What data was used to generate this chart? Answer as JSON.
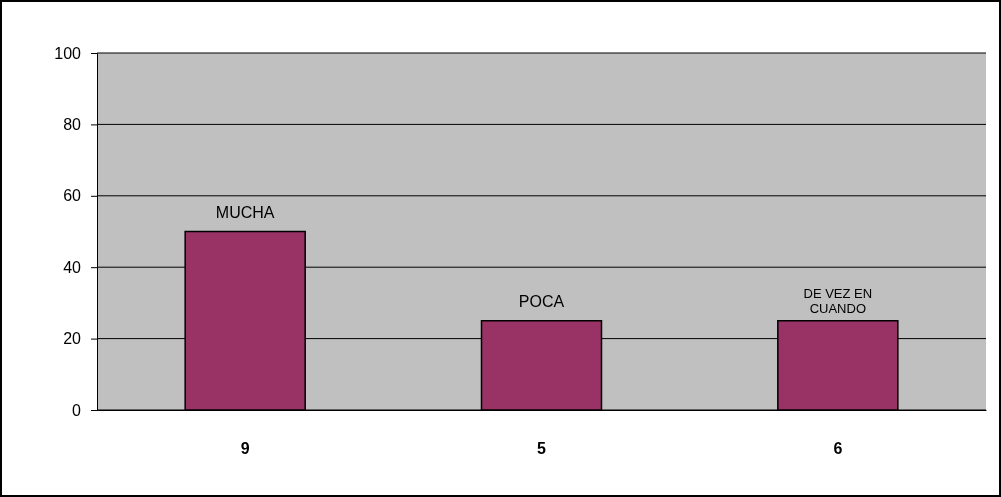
{
  "chart_data": {
    "type": "bar",
    "categories": [
      "9",
      "5",
      "6"
    ],
    "values": [
      50,
      25,
      25
    ],
    "color": "#993366",
    "ylim": [
      0,
      100
    ],
    "yticks": [
      0,
      20,
      40,
      60,
      80,
      100
    ],
    "grid": "y",
    "annotations": [
      {
        "text": "MUCHA",
        "x": "9",
        "y": 50
      },
      {
        "text": "POCA",
        "x": "5",
        "y": 25
      },
      {
        "text": "DE VEZ EN CUANDO",
        "x": "6",
        "y": 25
      }
    ]
  }
}
